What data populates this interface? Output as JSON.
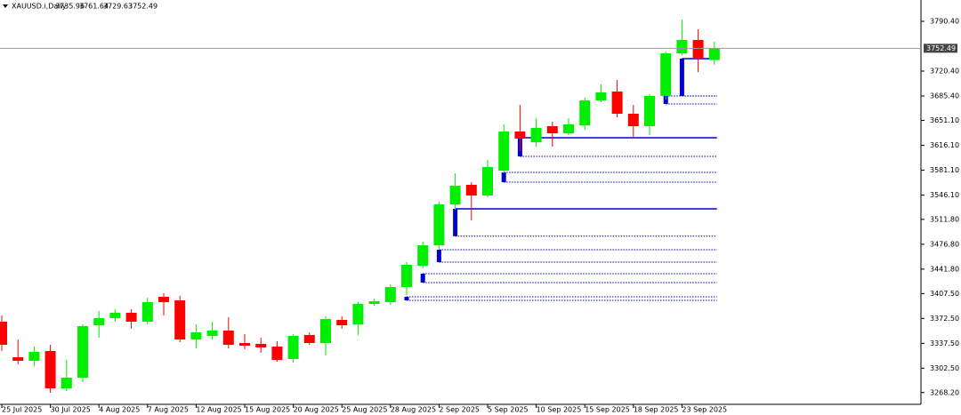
{
  "chart_data": {
    "type": "candlestick",
    "symbol": "XAUUSD.i,Daily",
    "categories": [
      "25 Jul 2025",
      null,
      null,
      "30 Jul 2025",
      null,
      null,
      "4 Aug 2025",
      null,
      null,
      "7 Aug 2025",
      null,
      null,
      "12 Aug 2025",
      null,
      null,
      "15 Aug 2025",
      null,
      null,
      "20 Aug 2025",
      null,
      null,
      "25 Aug 2025",
      null,
      null,
      "28 Aug 2025",
      null,
      null,
      "2 Sep 2025",
      null,
      null,
      "5 Sep 2025",
      null,
      null,
      "10 Sep 2025",
      null,
      null,
      "15 Sep 2025",
      null,
      null,
      "18 Sep 2025",
      null,
      null,
      "23 Sep 2025",
      null,
      null
    ],
    "open": [
      3367.9,
      3317.9,
      3312.9,
      3326.65,
      3274.15,
      3289.15,
      3362.9,
      3372.9,
      3380.4,
      3367.9,
      3402.9,
      3397.9,
      3342.9,
      3347.9,
      3355.4,
      3337.9,
      3336.65,
      3332.9,
      3315.4,
      3349.15,
      3337.9,
      3370.4,
      3364.15,
      3392.9,
      3395.4,
      3416.65,
      3446.65,
      3475.4,
      3532.9,
      3560.4,
      3545.4,
      3580.4,
      3635.4,
      3620.4,
      3642.9,
      3632.9,
      3644.15,
      3679.15,
      3691.65,
      3660.4,
      3642.9,
      3685.4,
      3745.4,
      3764.15,
      3735.96
    ],
    "high": [
      3376.65,
      3342.9,
      3332.9,
      3335.4,
      3314.15,
      3364.15,
      3382.9,
      3385.4,
      3385.4,
      3401.65,
      3407.9,
      3404.15,
      3364.15,
      3367.9,
      3374.15,
      3350.4,
      3345.4,
      3340.4,
      3350.4,
      3352.9,
      3375.4,
      3375.4,
      3395.4,
      3400.4,
      3420.4,
      3451.65,
      3480.4,
      3536.65,
      3576.65,
      3564.15,
      3595.4,
      3645.4,
      3672.9,
      3654.15,
      3649.15,
      3654.15,
      3682.9,
      3701.65,
      3707.9,
      3672.9,
      3687.9,
      3747.9,
      3792.9,
      3779.15,
      3761.64
    ],
    "low": [
      3326.65,
      3307.9,
      3305.4,
      3267.9,
      3270.4,
      3282.9,
      3345.4,
      3367.9,
      3357.9,
      3364.15,
      3376.65,
      3339.15,
      3330.4,
      3342.9,
      3330.4,
      3329.15,
      3324.15,
      3311.65,
      3310.4,
      3335.4,
      3320.4,
      3357.9,
      3349.15,
      3390.4,
      3391.65,
      3405.4,
      3442.9,
      3470.4,
      3525.4,
      3510.4,
      3542.9,
      3576.65,
      3607.9,
      3614.15,
      3614.15,
      3630.4,
      3637.9,
      3676.65,
      3655.4,
      3626.65,
      3630.4,
      3680.4,
      3742.9,
      3718.9,
      3729.63
    ],
    "close": [
      3335.4,
      3312.9,
      3325.4,
      3274.15,
      3289.15,
      3361.65,
      3372.9,
      3380.4,
      3367.9,
      3395.4,
      3395.4,
      3342.9,
      3352.9,
      3355.4,
      3335.4,
      3334.15,
      3331.65,
      3314.15,
      3347.9,
      3337.9,
      3371.65,
      3362.9,
      3392.9,
      3396.65,
      3416.65,
      3447.9,
      3475.4,
      3532.9,
      3559.15,
      3545.4,
      3585.4,
      3635.4,
      3625.4,
      3640.4,
      3632.9,
      3645.4,
      3679.15,
      3690.4,
      3660.4,
      3642.9,
      3685.4,
      3745.4,
      3764.15,
      3737.9,
      3752.49
    ],
    "up_color": "#00ee00",
    "down_color": "#ff0000",
    "zone_color": "#0000cc",
    "zones": [
      {
        "start": 25,
        "high": 3402.9,
        "low": 3397.9,
        "solid": false
      },
      {
        "start": 26,
        "high": 3435.4,
        "low": 3422.9,
        "solid": false
      },
      {
        "start": 27,
        "high": 3469.15,
        "low": 3451.65,
        "solid": false
      },
      {
        "start": 28,
        "high": 3526.65,
        "low": 3488.15,
        "solid": true
      },
      {
        "start": 31,
        "high": 3577.9,
        "low": 3564.15,
        "solid": false
      },
      {
        "start": 32,
        "high": 3626.65,
        "low": 3600.4,
        "solid": true
      },
      {
        "start": 41,
        "high": 3685.4,
        "low": 3674.15,
        "solid": false
      },
      {
        "start": 42,
        "high": 3737.9,
        "low": 3685.4,
        "solid": true
      }
    ],
    "ylim": [
      3251.65,
      3820.4
    ],
    "yticks": [
      {
        "value": 3790.4,
        "label": "3790.40"
      },
      {
        "value": 3720.4,
        "label": "3720.40"
      },
      {
        "value": 3685.4,
        "label": "3685.40"
      },
      {
        "value": 3651.1,
        "label": "3651.10"
      },
      {
        "value": 3616.1,
        "label": "3616.10"
      },
      {
        "value": 3581.1,
        "label": "3581.10"
      },
      {
        "value": 3546.1,
        "label": "3546.10"
      },
      {
        "value": 3511.8,
        "label": "3511.80"
      },
      {
        "value": 3476.8,
        "label": "3476.80"
      },
      {
        "value": 3441.8,
        "label": "3441.80"
      },
      {
        "value": 3407.5,
        "label": "3407.50"
      },
      {
        "value": 3372.5,
        "label": "3372.50"
      },
      {
        "value": 3337.5,
        "label": "3337.50"
      },
      {
        "value": 3302.5,
        "label": "3302.50"
      },
      {
        "value": 3268.2,
        "label": "3268.20"
      }
    ]
  }
}
